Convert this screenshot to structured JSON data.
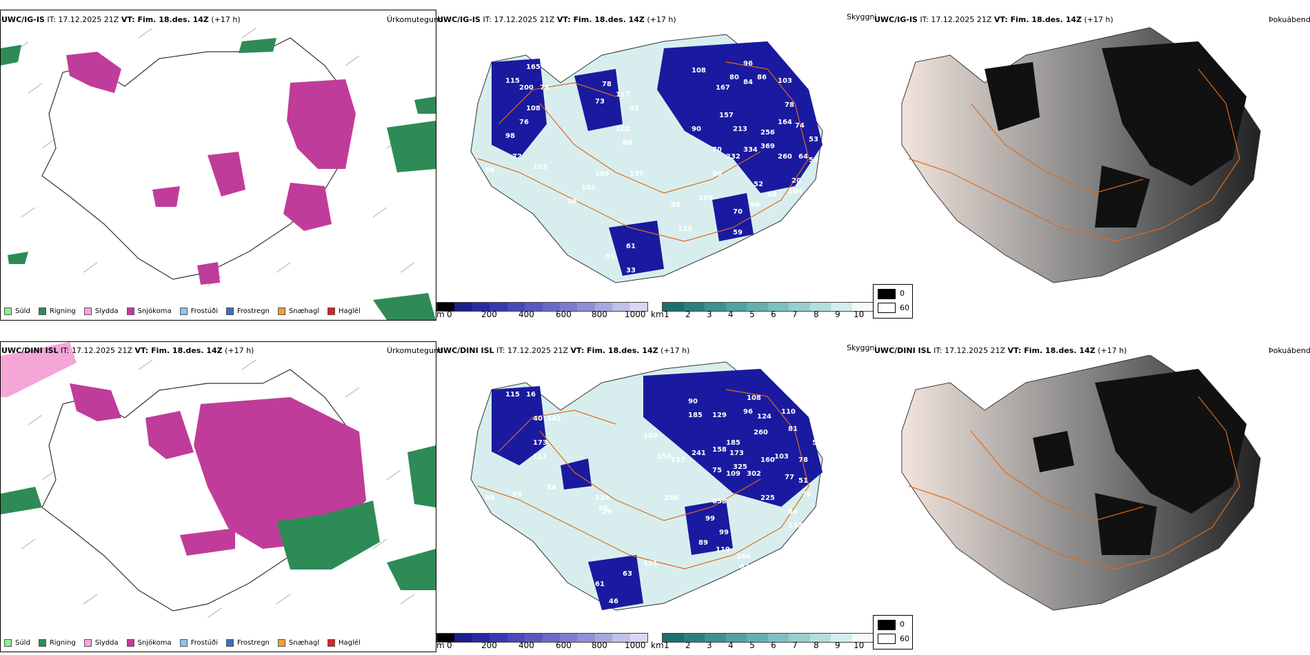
{
  "rows": [
    {
      "model": "UWC/IG-IS",
      "issue_time": "IT: 17.12.2025 21Z",
      "valid_time": "VT: Fim. 18.des. 14Z",
      "lead": "(+17 h)",
      "visibility_labels": [
        "115",
        "165",
        "200",
        "78",
        "108",
        "76",
        "98",
        "72",
        "59",
        "103",
        "73",
        "78",
        "117",
        "102",
        "93",
        "88",
        "90",
        "108",
        "96",
        "86",
        "80",
        "84",
        "167",
        "103",
        "157",
        "213",
        "256",
        "78",
        "164",
        "74",
        "53",
        "79",
        "64",
        "70",
        "232",
        "334",
        "369",
        "260",
        "53",
        "104",
        "48",
        "20",
        "137",
        "109",
        "101",
        "98",
        "95",
        "61",
        "55",
        "33",
        "70",
        "195",
        "115",
        "59",
        "96",
        "52",
        "50"
      ]
    },
    {
      "model": "UWC/DINI ISL",
      "issue_time": "IT: 17.12.2025 21Z",
      "valid_time": "VT: Fim. 18.des. 14Z",
      "lead": "(+17 h)",
      "visibility_labels": [
        "115",
        "16",
        "40",
        "142",
        "173",
        "111",
        "54",
        "99",
        "89",
        "129",
        "95",
        "109",
        "154",
        "157",
        "241",
        "90",
        "185",
        "129",
        "108",
        "96",
        "124",
        "110",
        "260",
        "81",
        "158",
        "185",
        "173",
        "325",
        "160",
        "103",
        "78",
        "54",
        "42",
        "75",
        "109",
        "302",
        "77",
        "51",
        "256",
        "858",
        "225",
        "99",
        "138",
        "86",
        "79",
        "99",
        "89",
        "119",
        "164",
        "63",
        "111",
        "61",
        "63",
        "46",
        "29"
      ]
    }
  ],
  "titles": {
    "precip_type": "Úrkomutegund",
    "visibility": "Skyggni",
    "fog": "Þokuábendi"
  },
  "precip_legend": [
    {
      "label": "Súld",
      "color": "#90ee90"
    },
    {
      "label": "Rigning",
      "color": "#2e8b57"
    },
    {
      "label": "Slydda",
      "color": "#f4a6d7"
    },
    {
      "label": "Snjókoma",
      "color": "#c03c9a"
    },
    {
      "label": "Frostúði",
      "color": "#8fc1f0"
    },
    {
      "label": "Frostregn",
      "color": "#3a6fc4"
    },
    {
      "label": "Snæhagl",
      "color": "#f0a030"
    },
    {
      "label": "Haglél",
      "color": "#e02020"
    }
  ],
  "cloud_base_bar": {
    "unit": "m",
    "ticks": [
      "0",
      "200",
      "400",
      "600",
      "800",
      "1000"
    ],
    "colors": [
      "#000000",
      "#1c1c8a",
      "#2a2aa0",
      "#3838b0",
      "#4848b8",
      "#5858c0",
      "#6a6ac8",
      "#7c7cd0",
      "#9090d8",
      "#a8a8e0",
      "#c0c0e8",
      "#d8d8f2"
    ]
  },
  "visibility_bar": {
    "unit": "km",
    "ticks": [
      "1",
      "2",
      "3",
      "4",
      "5",
      "6",
      "7",
      "8",
      "9",
      "10"
    ],
    "colors": [
      "#1f6e6e",
      "#2d7f7f",
      "#3f9090",
      "#52a0a0",
      "#66b0b0",
      "#7ec0c0",
      "#98cece",
      "#b4dede",
      "#d2eeee",
      "#f2fafa"
    ]
  },
  "fog_key": {
    "high": "0",
    "low": "60"
  },
  "colors": {
    "snow": "#c03c9a",
    "rain": "#2e8b57",
    "sleet": "#f4a6d7",
    "cloud_dark": "#1a1aa0",
    "vis_teal": "#3f9c9c",
    "roads": "#e06a1a",
    "land_fog": "#f2e4dc"
  }
}
